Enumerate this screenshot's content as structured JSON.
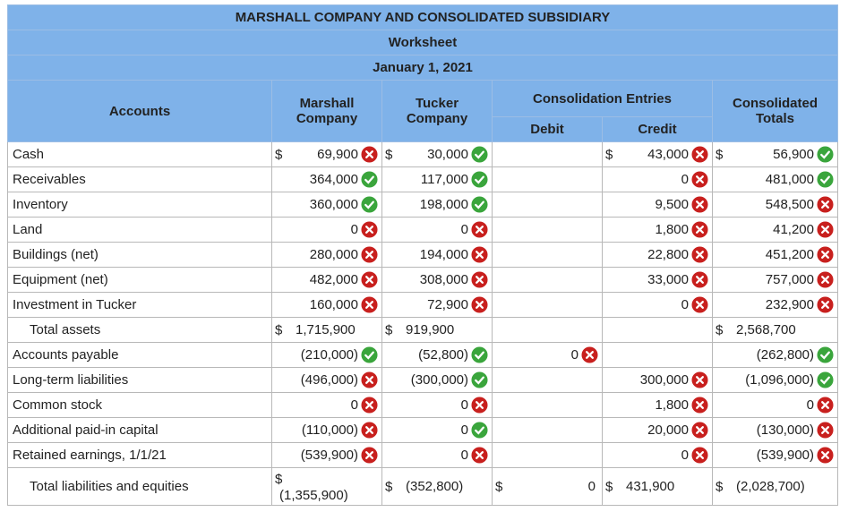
{
  "header": {
    "company": "MARSHALL COMPANY AND CONSOLIDATED SUBSIDIARY",
    "title": "Worksheet",
    "date": "January 1, 2021"
  },
  "columns": {
    "accounts": "Accounts",
    "marshall": "Marshall Company",
    "tucker": "Tucker Company",
    "entries": "Consolidation Entries",
    "debit": "Debit",
    "credit": "Credit",
    "consolidated": "Consolidated Totals"
  },
  "rows": [
    {
      "account": "Cash",
      "marshall": {
        "prefix": "$",
        "value": "69,900",
        "status": "incorrect"
      },
      "tucker": {
        "prefix": "$",
        "value": "30,000",
        "status": "correct"
      },
      "debit": null,
      "credit": {
        "prefix": "$",
        "value": "43,000",
        "status": "incorrect"
      },
      "consolidated": {
        "prefix": "$",
        "value": "56,900",
        "status": "correct"
      }
    },
    {
      "account": "Receivables",
      "marshall": {
        "value": "364,000",
        "status": "correct"
      },
      "tucker": {
        "value": "117,000",
        "status": "correct"
      },
      "debit": null,
      "credit": {
        "value": "0",
        "status": "incorrect"
      },
      "consolidated": {
        "value": "481,000",
        "status": "correct"
      }
    },
    {
      "account": "Inventory",
      "marshall": {
        "value": "360,000",
        "status": "correct"
      },
      "tucker": {
        "value": "198,000",
        "status": "correct"
      },
      "debit": null,
      "credit": {
        "value": "9,500",
        "status": "incorrect"
      },
      "consolidated": {
        "value": "548,500",
        "status": "incorrect"
      }
    },
    {
      "account": "Land",
      "marshall": {
        "value": "0",
        "status": "incorrect"
      },
      "tucker": {
        "value": "0",
        "status": "incorrect"
      },
      "debit": null,
      "credit": {
        "value": "1,800",
        "status": "incorrect"
      },
      "consolidated": {
        "value": "41,200",
        "status": "incorrect"
      }
    },
    {
      "account": "Buildings (net)",
      "marshall": {
        "value": "280,000",
        "status": "incorrect"
      },
      "tucker": {
        "value": "194,000",
        "status": "incorrect"
      },
      "debit": null,
      "credit": {
        "value": "22,800",
        "status": "incorrect"
      },
      "consolidated": {
        "value": "451,200",
        "status": "incorrect"
      }
    },
    {
      "account": "Equipment (net)",
      "marshall": {
        "value": "482,000",
        "status": "incorrect"
      },
      "tucker": {
        "value": "308,000",
        "status": "incorrect"
      },
      "debit": null,
      "credit": {
        "value": "33,000",
        "status": "incorrect"
      },
      "consolidated": {
        "value": "757,000",
        "status": "incorrect"
      }
    },
    {
      "account": "Investment in Tucker",
      "marshall": {
        "value": "160,000",
        "status": "incorrect"
      },
      "tucker": {
        "value": "72,900",
        "status": "incorrect"
      },
      "debit": null,
      "credit": {
        "value": "0",
        "status": "incorrect"
      },
      "consolidated": {
        "value": "232,900",
        "status": "incorrect"
      }
    },
    {
      "account": "Total assets",
      "total": true,
      "marshall": {
        "prefix": "$",
        "value": "1,715,900"
      },
      "tucker": {
        "prefix": "$",
        "value": "919,900"
      },
      "debit": null,
      "credit": null,
      "consolidated": {
        "prefix": "$",
        "value": "2,568,700"
      }
    },
    {
      "account": "Accounts payable",
      "marshall": {
        "value": "(210,000)",
        "status": "correct"
      },
      "tucker": {
        "value": "(52,800)",
        "status": "correct"
      },
      "debit": {
        "value": "0",
        "status": "incorrect"
      },
      "credit": null,
      "consolidated": {
        "value": "(262,800)",
        "status": "correct"
      }
    },
    {
      "account": "Long-term liabilities",
      "marshall": {
        "value": "(496,000)",
        "status": "incorrect"
      },
      "tucker": {
        "value": "(300,000)",
        "status": "correct"
      },
      "debit": null,
      "credit": {
        "value": "300,000",
        "status": "incorrect"
      },
      "consolidated": {
        "value": "(1,096,000)",
        "status": "correct"
      }
    },
    {
      "account": "Common stock",
      "marshall": {
        "value": "0",
        "status": "incorrect"
      },
      "tucker": {
        "value": "0",
        "status": "incorrect"
      },
      "debit": null,
      "credit": {
        "value": "1,800",
        "status": "incorrect"
      },
      "consolidated": {
        "value": "0",
        "status": "incorrect"
      }
    },
    {
      "account": "Additional paid-in capital",
      "marshall": {
        "value": "(110,000)",
        "status": "incorrect"
      },
      "tucker": {
        "value": "0",
        "status": "correct"
      },
      "debit": null,
      "credit": {
        "value": "20,000",
        "status": "incorrect"
      },
      "consolidated": {
        "value": "(130,000)",
        "status": "incorrect"
      }
    },
    {
      "account": "Retained earnings, 1/1/21",
      "marshall": {
        "value": "(539,900)",
        "status": "incorrect"
      },
      "tucker": {
        "value": "0",
        "status": "incorrect"
      },
      "debit": null,
      "credit": {
        "value": "0",
        "status": "incorrect"
      },
      "consolidated": {
        "value": "(539,900)",
        "status": "incorrect"
      }
    },
    {
      "account": "Total liabilities and equities",
      "total": true,
      "tall": true,
      "marshall": {
        "prefix": "$",
        "value": "(1,355,900)",
        "stacked": true
      },
      "tucker": {
        "prefix": "$",
        "value": "(352,800)"
      },
      "debit": {
        "prefix": "$",
        "value": "0"
      },
      "credit": {
        "prefix": "$",
        "value": "431,900"
      },
      "consolidated": {
        "prefix": "$",
        "value": "(2,028,700)"
      }
    }
  ]
}
